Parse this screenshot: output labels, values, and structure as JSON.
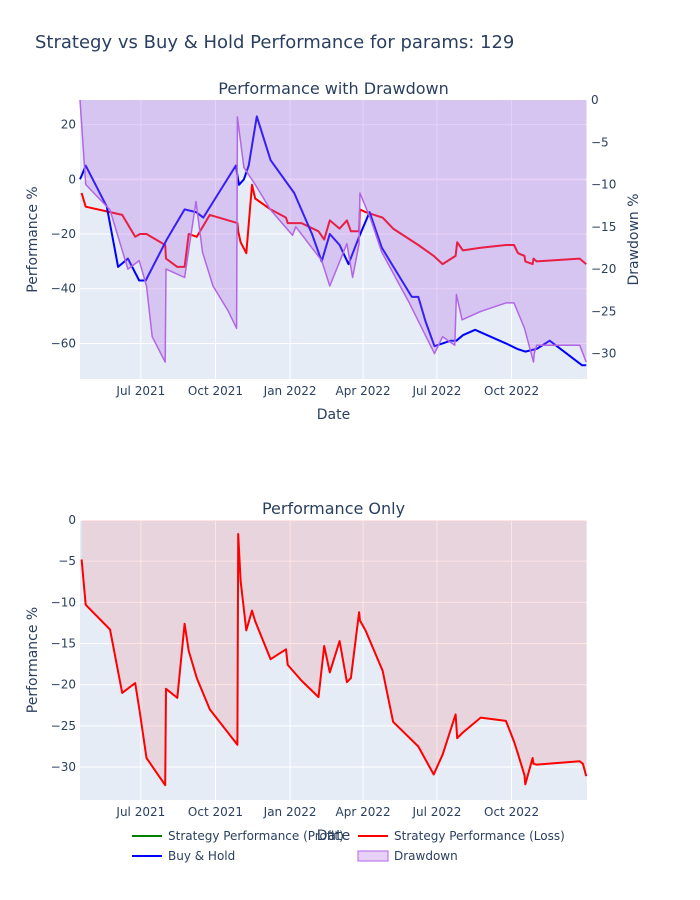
{
  "title": "Strategy vs Buy & Hold Performance for params: 129",
  "colors": {
    "plot_bg": "#e5ecf6",
    "grid": "#ffffff",
    "strategy_loss": "#ff0000",
    "strategy_profit": "#008000",
    "buy_hold": "#0000ff",
    "drawdown": "#b266e6"
  },
  "legend": [
    {
      "label": "Strategy Performance (Profit)",
      "color": "#008000",
      "kind": "line"
    },
    {
      "label": "Strategy Performance (Loss)",
      "color": "#ff0000",
      "kind": "line"
    },
    {
      "label": "Buy & Hold",
      "color": "#0000ff",
      "kind": "line"
    },
    {
      "label": "Drawdown",
      "color": "#b266e6",
      "kind": "fill"
    }
  ],
  "chart_data": [
    {
      "type": "line",
      "title": "Performance with Drawdown",
      "xlabel": "Date",
      "ylabel": "Performance %",
      "y2label": "Drawdown %",
      "xlim": [
        "2021-04-17",
        "2023-01-02"
      ],
      "ylim": [
        -73,
        29
      ],
      "y2lim": [
        0,
        -33
      ],
      "xticks": [
        {
          "date": "2021-07-01",
          "label": "Jul 2021"
        },
        {
          "date": "2021-10-01",
          "label": "Oct 2021"
        },
        {
          "date": "2022-01-01",
          "label": "Jan 2022"
        },
        {
          "date": "2022-04-01",
          "label": "Apr 2022"
        },
        {
          "date": "2022-07-01",
          "label": "Jul 2022"
        },
        {
          "date": "2022-10-01",
          "label": "Oct 2022"
        }
      ],
      "yticks": [
        20,
        0,
        -20,
        -40,
        -60
      ],
      "y2ticks": [
        0,
        -5,
        -10,
        -15,
        -20,
        -25,
        -30
      ],
      "series": [
        {
          "name": "Strategy Performance (Loss)",
          "color": "#ff0000",
          "axis": "y",
          "x": [
            "2021-04-19",
            "2021-04-24",
            "2021-05-24",
            "2021-06-08",
            "2021-06-24",
            "2021-06-30",
            "2021-07-08",
            "2021-07-31",
            "2021-08-01",
            "2021-08-15",
            "2021-08-24",
            "2021-08-29",
            "2021-09-08",
            "2021-09-24",
            "2021-10-28",
            "2021-10-29",
            "2021-11-01",
            "2021-11-08",
            "2021-11-15",
            "2021-11-19",
            "2021-12-08",
            "2021-12-27",
            "2021-12-29",
            "2022-01-15",
            "2022-02-05",
            "2022-02-12",
            "2022-02-19",
            "2022-03-03",
            "2022-03-12",
            "2022-03-17",
            "2022-03-27",
            "2022-03-28",
            "2022-04-04",
            "2022-04-25",
            "2022-05-08",
            "2022-06-08",
            "2022-06-27",
            "2022-07-08",
            "2022-07-24",
            "2022-07-26",
            "2022-08-02",
            "2022-08-24",
            "2022-09-24",
            "2022-10-04",
            "2022-10-09",
            "2022-10-17",
            "2022-10-18",
            "2022-10-27",
            "2022-10-28",
            "2022-11-01",
            "2022-12-24",
            "2022-12-28",
            "2023-01-01"
          ],
          "y": [
            -5,
            -10,
            -12,
            -13,
            -21,
            -20,
            -20,
            -24,
            -29,
            -32,
            -32,
            -20,
            -21,
            -13,
            -16,
            -19,
            -23,
            -27,
            -2,
            -7,
            -11,
            -14,
            -16,
            -16,
            -19,
            -22,
            -15,
            -18,
            -15,
            -19,
            -19,
            -11,
            -12,
            -14,
            -18,
            -24,
            -28,
            -31,
            -28,
            -23,
            -26,
            -25,
            -24,
            -24,
            -27,
            -28,
            -30,
            -31,
            -29,
            -30,
            -29,
            -30,
            -31
          ]
        },
        {
          "name": "Buy & Hold",
          "color": "#0000ff",
          "axis": "y",
          "x": [
            "2021-04-17",
            "2021-04-20",
            "2021-04-24",
            "2021-05-20",
            "2021-06-03",
            "2021-06-15",
            "2021-06-29",
            "2021-07-07",
            "2021-08-02",
            "2021-08-24",
            "2021-09-07",
            "2021-09-16",
            "2021-10-26",
            "2021-10-30",
            "2021-11-05",
            "2021-11-11",
            "2021-11-21",
            "2021-12-08",
            "2022-01-06",
            "2022-01-28",
            "2022-02-09",
            "2022-02-19",
            "2022-03-03",
            "2022-03-14",
            "2022-03-27",
            "2022-04-09",
            "2022-04-24",
            "2022-05-31",
            "2022-06-08",
            "2022-06-17",
            "2022-06-28",
            "2022-07-08",
            "2022-07-18",
            "2022-07-25",
            "2022-08-02",
            "2022-08-17",
            "2022-09-24",
            "2022-10-08",
            "2022-10-18",
            "2022-11-01",
            "2022-11-17",
            "2022-12-27",
            "2023-01-01"
          ],
          "y": [
            0,
            2,
            5,
            -10,
            -32,
            -29,
            -37,
            -37,
            -22,
            -11,
            -12,
            -14,
            5,
            -2,
            0,
            5,
            23,
            7,
            -5,
            -20,
            -30,
            -20,
            -24,
            -31,
            -21,
            -12,
            -25,
            -43,
            -43,
            -52,
            -61,
            -60,
            -59,
            -59,
            -57,
            -55,
            -60,
            -62,
            -63,
            -62,
            -59,
            -68,
            -68
          ]
        },
        {
          "name": "Drawdown",
          "color": "#b266e6",
          "axis": "y2",
          "fill": true,
          "x": [
            "2021-04-17",
            "2021-04-24",
            "2021-05-24",
            "2021-06-15",
            "2021-06-29",
            "2021-07-08",
            "2021-07-15",
            "2021-07-31",
            "2021-08-01",
            "2021-08-24",
            "2021-09-07",
            "2021-09-15",
            "2021-09-28",
            "2021-10-17",
            "2021-10-27",
            "2021-10-28",
            "2021-11-05",
            "2021-11-19",
            "2021-12-08",
            "2022-01-04",
            "2022-01-08",
            "2022-02-09",
            "2022-02-19",
            "2022-03-12",
            "2022-03-19",
            "2022-03-27",
            "2022-03-28",
            "2022-04-10",
            "2022-04-24",
            "2022-05-28",
            "2022-06-28",
            "2022-07-08",
            "2022-07-23",
            "2022-07-25",
            "2022-08-01",
            "2022-08-24",
            "2022-09-24",
            "2022-10-04",
            "2022-10-17",
            "2022-10-28",
            "2022-10-29",
            "2022-11-01",
            "2022-12-24",
            "2023-01-01"
          ],
          "y": [
            0,
            -10,
            -13,
            -20,
            -19,
            -22,
            -28,
            -31,
            -20,
            -21,
            -12,
            -18,
            -22,
            -25,
            -27,
            -2,
            -8,
            -10,
            -13,
            -16,
            -15,
            -19,
            -22,
            -17,
            -21,
            -17,
            -11,
            -14,
            -18,
            -24,
            -30,
            -28,
            -29,
            -23,
            -26,
            -25,
            -24,
            -24,
            -27,
            -31,
            -30,
            -29,
            -29,
            -31
          ]
        }
      ]
    },
    {
      "type": "area",
      "title": "Performance Only",
      "xlabel": "Date",
      "ylabel": "Performance %",
      "xlim": [
        "2021-04-17",
        "2023-01-02"
      ],
      "ylim": [
        -34,
        0
      ],
      "xticks": [
        {
          "date": "2021-07-01",
          "label": "Jul 2021"
        },
        {
          "date": "2021-10-01",
          "label": "Oct 2021"
        },
        {
          "date": "2022-01-01",
          "label": "Jan 2022"
        },
        {
          "date": "2022-04-01",
          "label": "Apr 2022"
        },
        {
          "date": "2022-07-01",
          "label": "Jul 2022"
        },
        {
          "date": "2022-10-01",
          "label": "Oct 2022"
        }
      ],
      "yticks": [
        0,
        -5,
        -10,
        -15,
        -20,
        -25,
        -30
      ],
      "series": [
        {
          "name": "Strategy Performance (Loss)",
          "color": "#ff0000",
          "fill": true,
          "x": [
            "2021-04-19",
            "2021-04-24",
            "2021-05-24",
            "2021-06-08",
            "2021-06-24",
            "2021-06-30",
            "2021-07-08",
            "2021-07-31",
            "2021-08-01",
            "2021-08-15",
            "2021-08-24",
            "2021-08-29",
            "2021-09-08",
            "2021-09-24",
            "2021-10-28",
            "2021-10-29",
            "2021-11-01",
            "2021-11-08",
            "2021-11-15",
            "2021-11-19",
            "2021-12-08",
            "2021-12-27",
            "2021-12-29",
            "2022-01-15",
            "2022-02-05",
            "2022-02-12",
            "2022-02-19",
            "2022-03-03",
            "2022-03-12",
            "2022-03-17",
            "2022-03-27",
            "2022-03-28",
            "2022-04-04",
            "2022-04-25",
            "2022-05-08",
            "2022-06-08",
            "2022-06-27",
            "2022-07-08",
            "2022-07-24",
            "2022-07-26",
            "2022-08-02",
            "2022-08-24",
            "2022-09-24",
            "2022-10-04",
            "2022-10-09",
            "2022-10-17",
            "2022-10-18",
            "2022-10-27",
            "2022-10-28",
            "2022-11-01",
            "2022-12-24",
            "2022-12-28",
            "2023-01-01"
          ],
          "y": [
            -4.8,
            -10.3,
            -13.3,
            -21,
            -19.8,
            -23.5,
            -28.9,
            -32.2,
            -20.5,
            -21.6,
            -12.6,
            -15.9,
            -19.2,
            -23,
            -27.3,
            -1.7,
            -7.4,
            -13.4,
            -11,
            -12.3,
            -16.9,
            -15.7,
            -17.6,
            -19.5,
            -21.5,
            -15.3,
            -18.5,
            -14.7,
            -19.7,
            -19.2,
            -11.2,
            -12.2,
            -13.4,
            -18.3,
            -24.5,
            -27.5,
            -30.9,
            -28.5,
            -23.6,
            -26.5,
            -25.8,
            -24,
            -24.4,
            -26.9,
            -28.4,
            -31,
            -32.1,
            -28.9,
            -29.6,
            -29.7,
            -29.3,
            -29.6,
            -31.1
          ]
        }
      ]
    }
  ]
}
